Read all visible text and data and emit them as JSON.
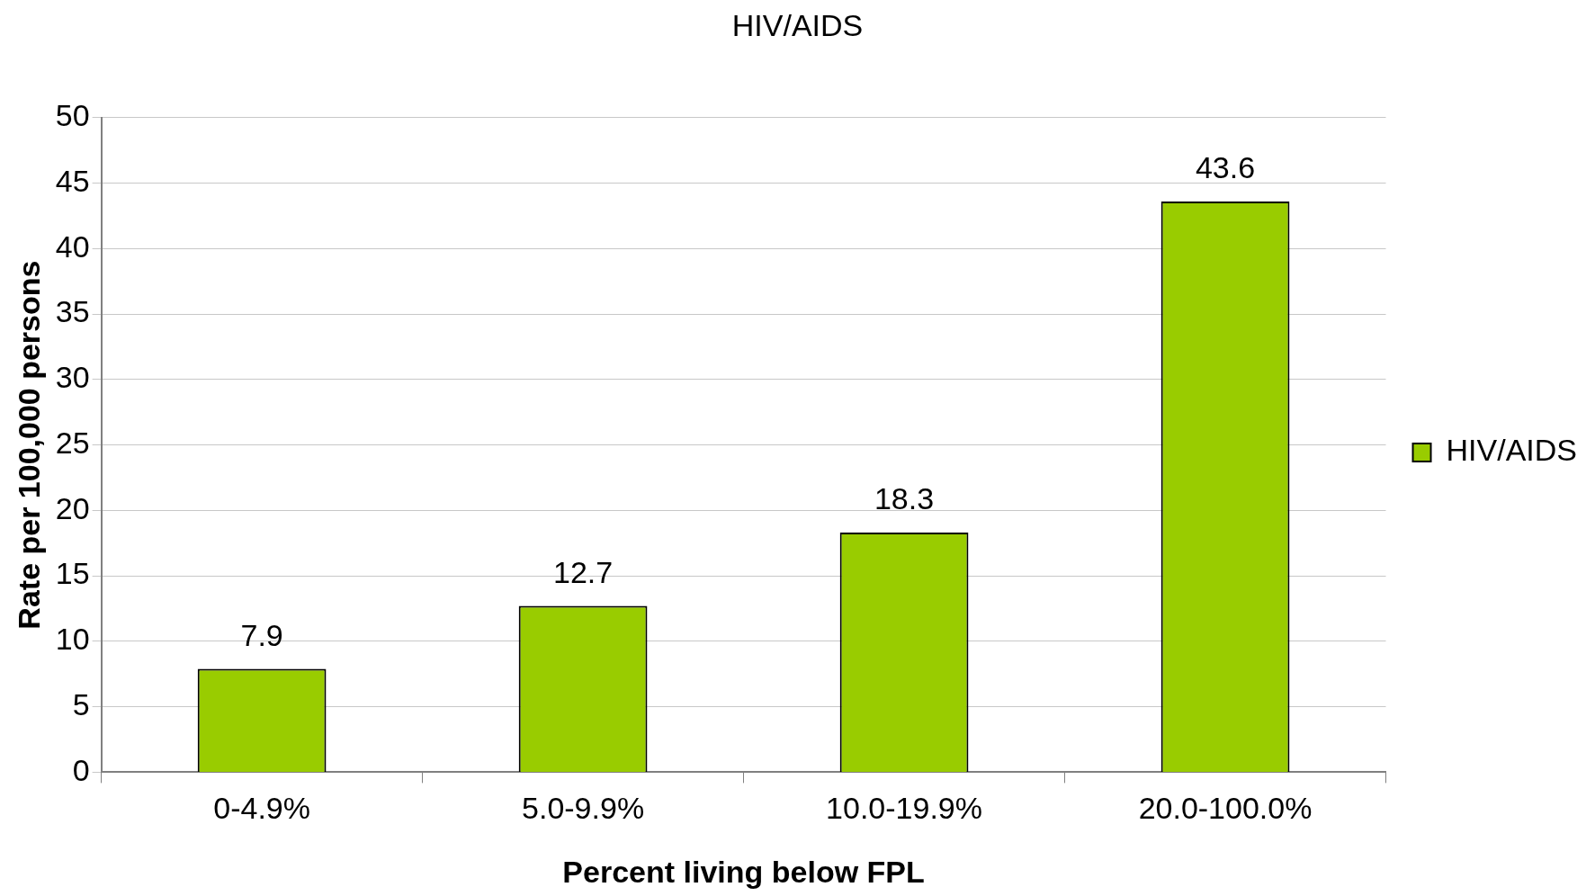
{
  "chart_data": {
    "type": "bar",
    "title": "HIV/AIDS",
    "xlabel": "Percent living below FPL",
    "ylabel": "Rate per 100,000 persons",
    "categories": [
      "0-4.9%",
      "5.0-9.9%",
      "10.0-19.9%",
      "20.0-100.0%"
    ],
    "series": [
      {
        "name": "HIV/AIDS",
        "color": "#99cc00",
        "values": [
          7.9,
          12.7,
          18.3,
          43.6
        ]
      }
    ],
    "ylim": [
      0,
      50
    ],
    "yticks": [
      0,
      5,
      10,
      15,
      20,
      25,
      30,
      35,
      40,
      45,
      50
    ],
    "grid": "y",
    "legend": "right",
    "data_labels": true
  }
}
